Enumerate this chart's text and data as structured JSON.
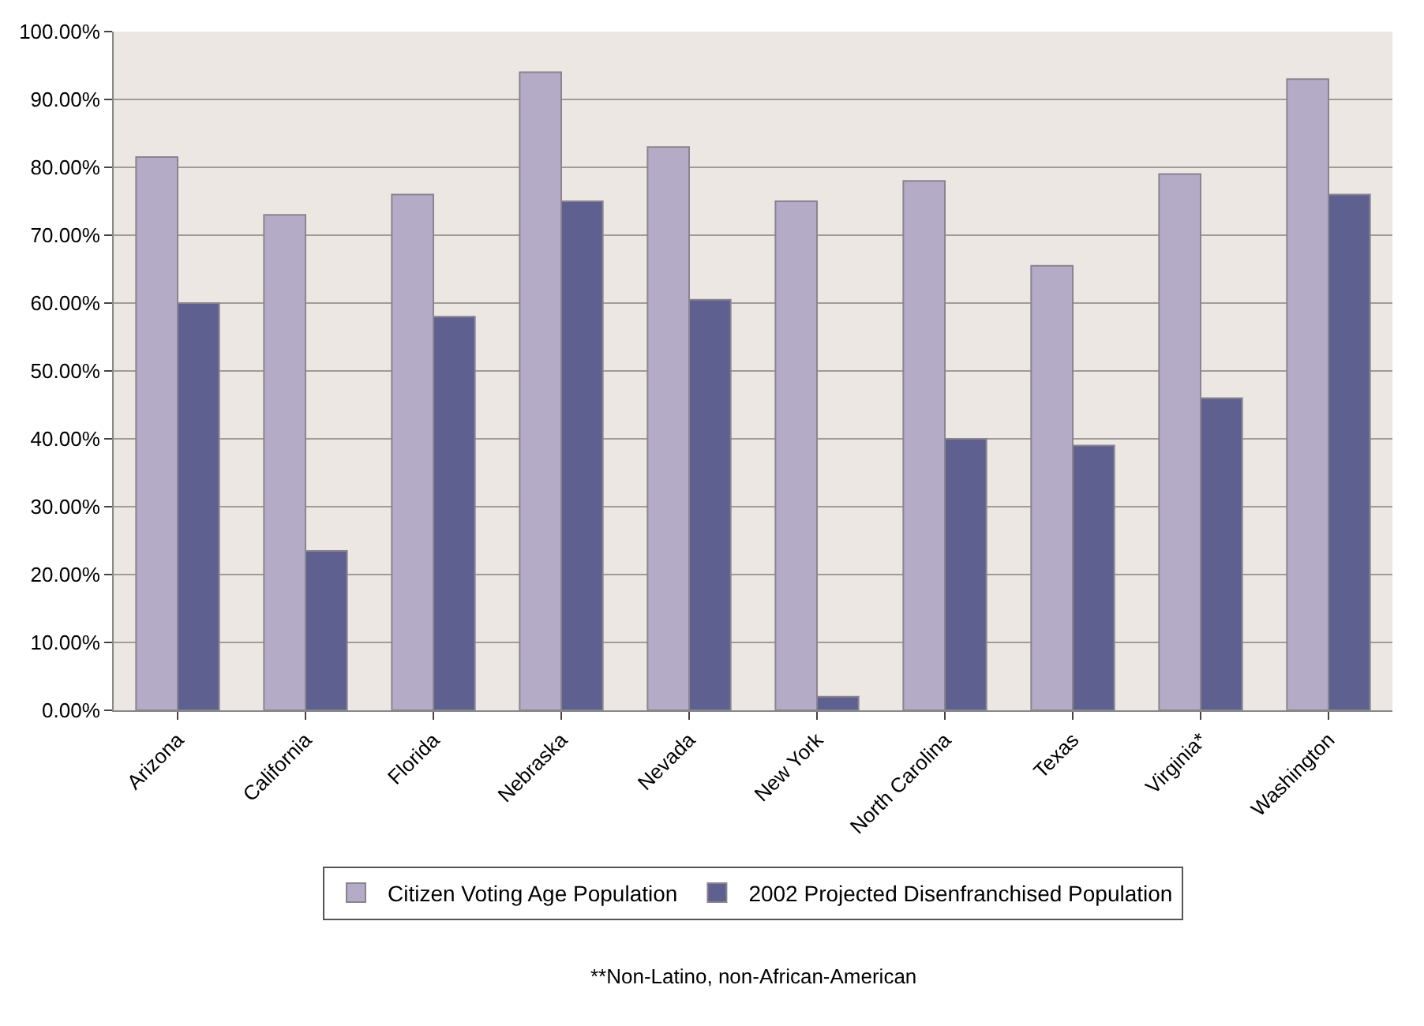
{
  "chart_data": {
    "type": "bar",
    "categories": [
      "Arizona",
      "California",
      "Florida",
      "Nebraska",
      "Nevada",
      "New York",
      "North Carolina",
      "Texas",
      "Virginia*",
      "Washington"
    ],
    "series": [
      {
        "name": "Citizen Voting Age Population",
        "color": "#b4abc6",
        "values": [
          81.5,
          73,
          76,
          94,
          83,
          75,
          78,
          65.5,
          79,
          93
        ]
      },
      {
        "name": "2002 Projected Disenfranchised Population",
        "color": "#5e6190",
        "values": [
          60,
          23.5,
          58,
          75,
          60.5,
          2,
          40,
          39,
          46,
          76
        ]
      }
    ],
    "ylim": [
      0,
      100
    ],
    "yticks": [
      {
        "value": 0,
        "label": "0.00%"
      },
      {
        "value": 10,
        "label": "10.00%"
      },
      {
        "value": 20,
        "label": "20.00%"
      },
      {
        "value": 30,
        "label": "30.00%"
      },
      {
        "value": 40,
        "label": "40.00%"
      },
      {
        "value": 50,
        "label": "50.00%"
      },
      {
        "value": 60,
        "label": "60.00%"
      },
      {
        "value": 70,
        "label": "70.00%"
      },
      {
        "value": 80,
        "label": "80.00%"
      },
      {
        "value": 90,
        "label": "90.00%"
      },
      {
        "value": 100,
        "label": "100.00%"
      }
    ],
    "grid": "y",
    "legend": "bottom",
    "annotations": [
      "**Non-Latino, non-African-American"
    ]
  }
}
